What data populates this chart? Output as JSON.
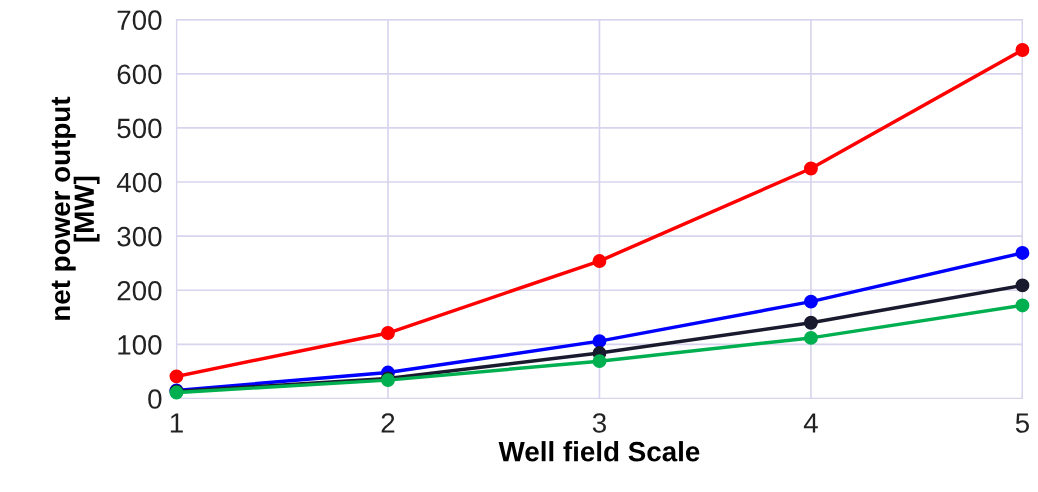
{
  "chart_data": {
    "type": "line",
    "xlabel": "Well field Scale",
    "ylabel": "net power output\n[MW]",
    "x": [
      1,
      2,
      3,
      4,
      5
    ],
    "series": [
      {
        "color": "#ff0000",
        "values": [
          41,
          121,
          254,
          425,
          644
        ]
      },
      {
        "color": "#0000ff",
        "values": [
          15,
          48,
          106,
          179,
          269
        ]
      },
      {
        "color": "#1a1a2e",
        "values": [
          13,
          37,
          84,
          140,
          209
        ]
      },
      {
        "color": "#00b050",
        "values": [
          11,
          34,
          69,
          112,
          172
        ]
      }
    ],
    "xlim": [
      1,
      5
    ],
    "ylim": [
      0,
      700
    ],
    "xticks": [
      1,
      2,
      3,
      4,
      5
    ],
    "yticks": [
      0,
      100,
      200,
      300,
      400,
      500,
      600,
      700
    ],
    "grid": true,
    "marker": "circle",
    "line_style": "solid"
  }
}
